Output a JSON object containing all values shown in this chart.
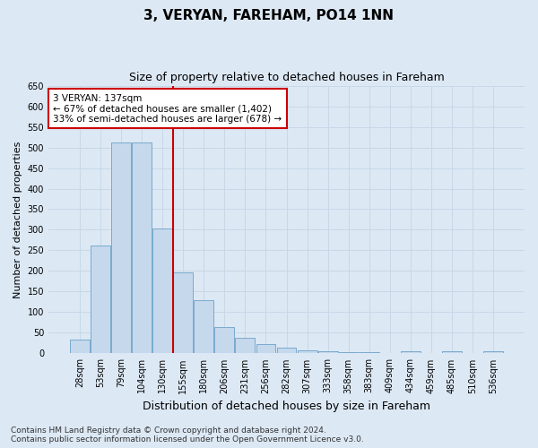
{
  "title": "3, VERYAN, FAREHAM, PO14 1NN",
  "subtitle": "Size of property relative to detached houses in Fareham",
  "xlabel": "Distribution of detached houses by size in Fareham",
  "ylabel": "Number of detached properties",
  "categories": [
    "28sqm",
    "53sqm",
    "79sqm",
    "104sqm",
    "130sqm",
    "155sqm",
    "180sqm",
    "206sqm",
    "231sqm",
    "256sqm",
    "282sqm",
    "307sqm",
    "333sqm",
    "358sqm",
    "383sqm",
    "409sqm",
    "434sqm",
    "459sqm",
    "485sqm",
    "510sqm",
    "536sqm"
  ],
  "values": [
    33,
    263,
    511,
    511,
    303,
    196,
    130,
    65,
    38,
    22,
    15,
    8,
    5,
    4,
    4,
    0,
    5,
    0,
    5,
    0,
    5
  ],
  "bar_color": "#c5d8ec",
  "bar_edge_color": "#7aaace",
  "vline_x_index": 4,
  "vline_color": "#cc0000",
  "annotation_text": "3 VERYAN: 137sqm\n← 67% of detached houses are smaller (1,402)\n33% of semi-detached houses are larger (678) →",
  "annotation_box_color": "#ffffff",
  "annotation_box_edge": "#cc0000",
  "ylim": [
    0,
    650
  ],
  "yticks": [
    0,
    50,
    100,
    150,
    200,
    250,
    300,
    350,
    400,
    450,
    500,
    550,
    600,
    650
  ],
  "grid_color": "#c8d8e8",
  "background_color": "#dce8f4",
  "footer": "Contains HM Land Registry data © Crown copyright and database right 2024.\nContains public sector information licensed under the Open Government Licence v3.0.",
  "title_fontsize": 11,
  "subtitle_fontsize": 9,
  "xlabel_fontsize": 9,
  "ylabel_fontsize": 8,
  "tick_fontsize": 7,
  "annotation_fontsize": 7.5,
  "footer_fontsize": 6.5
}
